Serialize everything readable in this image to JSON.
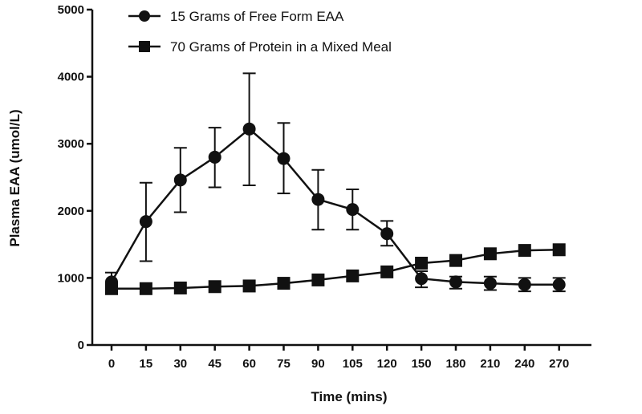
{
  "chart_data": {
    "type": "line",
    "title": "",
    "xlabel": "Time (mins)",
    "ylabel": "Plasma EAA (umol/L)",
    "ylim": [
      0,
      5000
    ],
    "yticks": [
      0,
      1000,
      2000,
      3000,
      4000,
      5000
    ],
    "x": [
      "0",
      "15",
      "30",
      "45",
      "60",
      "75",
      "90",
      "105",
      "120",
      "150",
      "180",
      "210",
      "240",
      "270"
    ],
    "legend_position": "top-left",
    "grid": false,
    "series": [
      {
        "name": "15 Grams of Free Form EAA",
        "marker": "circle",
        "values": [
          940,
          1840,
          2460,
          2800,
          3220,
          2780,
          2170,
          2020,
          1660,
          990,
          940,
          920,
          900,
          900
        ],
        "err_low": [
          820,
          1250,
          1980,
          2350,
          2380,
          2260,
          1720,
          1720,
          1480,
          860,
          840,
          820,
          800,
          800
        ],
        "err_high": [
          1080,
          2420,
          2940,
          3240,
          4050,
          3310,
          2610,
          2320,
          1850,
          1100,
          1020,
          1020,
          1000,
          1000
        ]
      },
      {
        "name": "70 Grams of Protein in a Mixed Meal",
        "marker": "square",
        "values": [
          840,
          840,
          850,
          870,
          880,
          920,
          970,
          1030,
          1090,
          1220,
          1260,
          1360,
          1410,
          1420
        ]
      }
    ],
    "color": "#111111"
  }
}
